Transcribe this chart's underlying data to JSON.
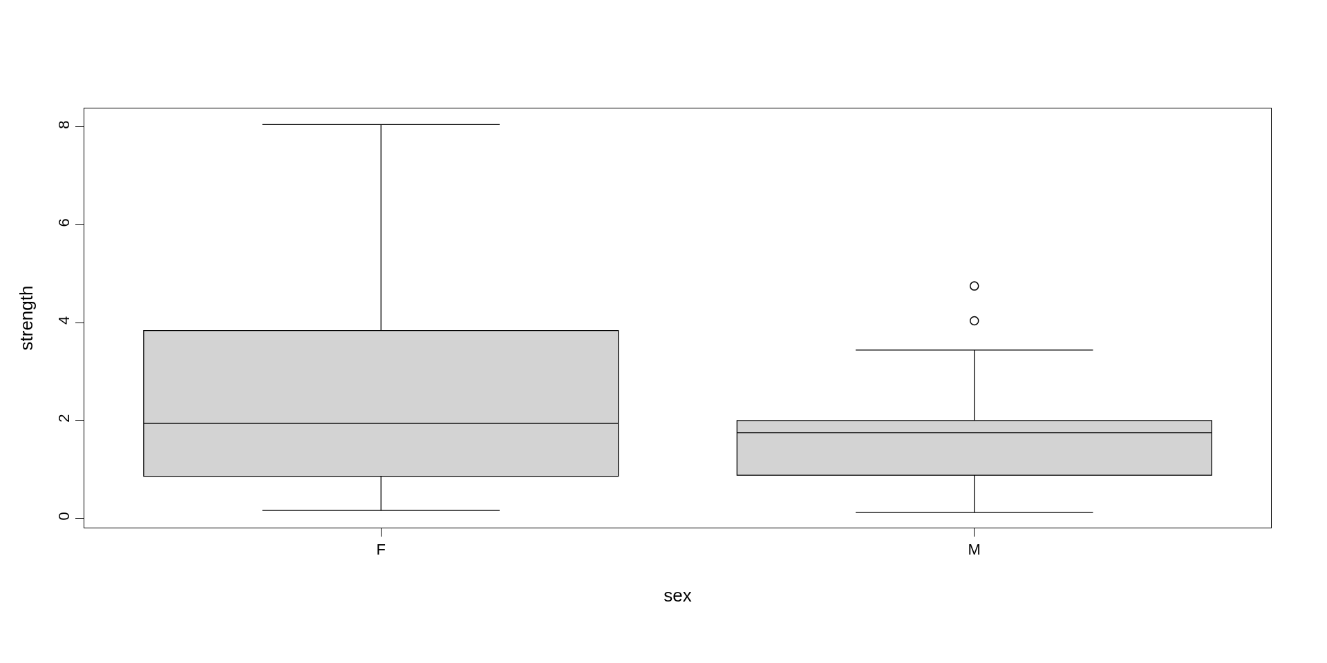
{
  "chart_data": {
    "type": "box",
    "xlabel": "sex",
    "ylabel": "strength",
    "categories": [
      "F",
      "M"
    ],
    "color": "#d3d3d3",
    "boxes": [
      {
        "low": 0.16,
        "q1": 0.86,
        "median": 1.94,
        "q3": 3.84,
        "high": 8.05
      },
      {
        "low": 0.12,
        "q1": 0.88,
        "median": 1.75,
        "q3": 2.0,
        "high": 3.44,
        "outliers": [
          4.04,
          4.75
        ]
      }
    ],
    "ylim": [
      -0.19,
      8.38
    ],
    "yticks": [
      0,
      2,
      4,
      6,
      8
    ],
    "grid": false
  }
}
